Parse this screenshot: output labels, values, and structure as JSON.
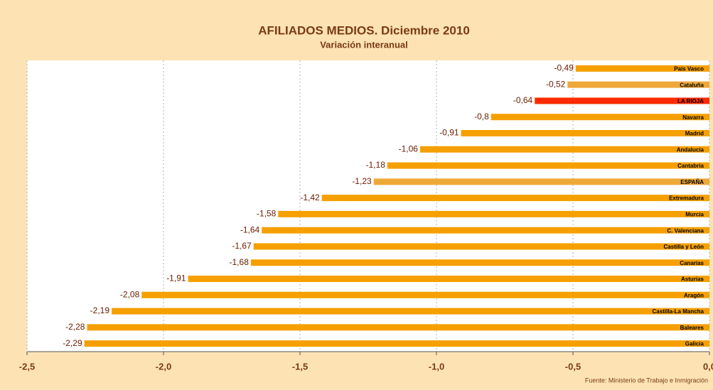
{
  "chart_data": {
    "type": "barh",
    "title": "AFILIADOS MEDIOS. Diciembre 2010",
    "subtitle": "Variación interanual",
    "source": "Fuente: Ministerio de Trabajo e Inmigración",
    "categories": [
      "País Vasco",
      "Cataluña",
      "LA RIOJA",
      "Navarra",
      "Madrid",
      "Andalucía",
      "Cantabria",
      "ESPAÑA",
      "Extremadura",
      "Murcia",
      "C. Valenciana",
      "Castilla y León",
      "Canarias",
      "Asturias",
      "Aragón",
      "Castilla-La Mancha",
      "Baleares",
      "Galicia"
    ],
    "values": [
      -0.49,
      -0.52,
      -0.64,
      -0.8,
      -0.91,
      -1.06,
      -1.18,
      -1.23,
      -1.42,
      -1.58,
      -1.64,
      -1.67,
      -1.68,
      -1.91,
      -2.08,
      -2.19,
      -2.28,
      -2.29
    ],
    "value_labels": [
      "-0,49",
      "-0,52",
      "-0,64",
      "-0,8",
      "-0,91",
      "-1,06",
      "-1,18",
      "-1,23",
      "-1,42",
      "-1,58",
      "-1,64",
      "-1,67",
      "-1,68",
      "-1,91",
      "-2,08",
      "-2,19",
      "-2,28",
      "-2,29"
    ],
    "colors": [
      "#f5a000",
      "#eea838",
      "#ff2a00",
      "#f5a000",
      "#f5a000",
      "#f5a000",
      "#f5a000",
      "#eea838",
      "#f5a000",
      "#f5a000",
      "#f5a000",
      "#f5a000",
      "#f5a000",
      "#f5a000",
      "#f5a000",
      "#f5a000",
      "#f5a000",
      "#f5a000"
    ],
    "xlim": [
      -2.5,
      0
    ],
    "xticks": [
      {
        "value": -2.5,
        "label": "-2,5"
      },
      {
        "value": -2.0,
        "label": "-2,0"
      },
      {
        "value": -1.5,
        "label": "-1,5"
      },
      {
        "value": -1.0,
        "label": "-1,0"
      },
      {
        "value": -0.5,
        "label": "-0,5"
      },
      {
        "value": 0,
        "label": "0,0"
      }
    ],
    "grid": true
  }
}
